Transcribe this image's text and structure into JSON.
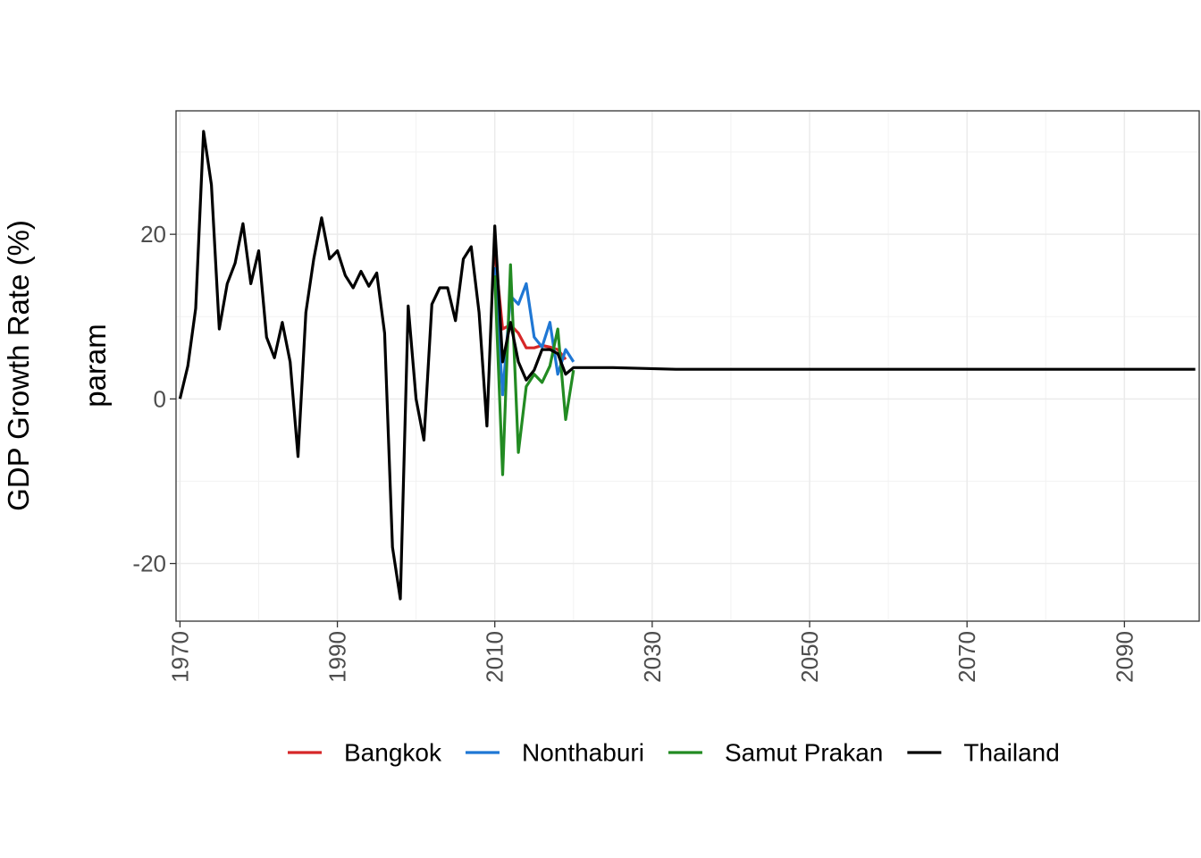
{
  "chart_data": {
    "type": "line",
    "ylabel_outer": "GDP Growth Rate (%)",
    "ylabel_inner": "param",
    "xlabel": "",
    "xlim": [
      1969.5,
      2099.5
    ],
    "ylim": [
      -27,
      35
    ],
    "x_ticks": [
      1970,
      1990,
      2010,
      2030,
      2050,
      2070,
      2090
    ],
    "x_tick_labels": [
      "1970",
      "1990",
      "2010",
      "2030",
      "2050",
      "2070",
      "2090"
    ],
    "y_ticks": [
      -20,
      0,
      20
    ],
    "y_tick_labels": [
      "-20",
      "0",
      "20"
    ],
    "x_minor_ticks": [
      1980,
      2000,
      2020,
      2040,
      2060,
      2080
    ],
    "y_minor_ticks": [
      -10,
      10,
      30
    ],
    "grid": true,
    "legend_position": "bottom",
    "series": [
      {
        "name": "Bangkok",
        "color": "#d62728",
        "x": [
          2010,
          2011,
          2012,
          2013,
          2014,
          2015,
          2016,
          2017,
          2018,
          2019
        ],
        "y": [
          18,
          8.5,
          9,
          8,
          6.2,
          6.2,
          6.5,
          6.3,
          6.0,
          4.8
        ]
      },
      {
        "name": "Nonthaburi",
        "color": "#1f77d4",
        "x": [
          2010,
          2011,
          2012,
          2013,
          2014,
          2015,
          2016,
          2017,
          2018,
          2019,
          2020
        ],
        "y": [
          16,
          0.5,
          12.5,
          11.5,
          14,
          7.5,
          6.3,
          9.3,
          3,
          6,
          4.5
        ]
      },
      {
        "name": "Samut Prakan",
        "color": "#228b22",
        "x": [
          2010,
          2011,
          2012,
          2013,
          2014,
          2015,
          2016,
          2017,
          2018,
          2019,
          2020
        ],
        "y": [
          15,
          -9.2,
          16.3,
          -6.5,
          1.5,
          3,
          2,
          4,
          8.5,
          -2.5,
          3.5
        ]
      },
      {
        "name": "Thailand",
        "color": "#000000",
        "x": [
          1970,
          1971,
          1972,
          1973,
          1974,
          1975,
          1976,
          1977,
          1978,
          1979,
          1980,
          1981,
          1982,
          1983,
          1984,
          1985,
          1986,
          1987,
          1988,
          1989,
          1990,
          1991,
          1992,
          1993,
          1994,
          1995,
          1996,
          1997,
          1998,
          1999,
          2000,
          2001,
          2002,
          2003,
          2004,
          2005,
          2006,
          2007,
          2008,
          2009,
          2010,
          2011,
          2012,
          2013,
          2014,
          2015,
          2016,
          2017,
          2018,
          2019,
          2020,
          2025,
          2033,
          2050,
          2070,
          2099
        ],
        "y": [
          0,
          4,
          11,
          32.5,
          26,
          8.5,
          14,
          16.5,
          21.3,
          14,
          18,
          7.5,
          5,
          9.3,
          4.5,
          -7,
          10.5,
          17,
          22,
          17,
          18,
          15,
          13.5,
          15.5,
          13.7,
          15.3,
          8,
          -18,
          -24.3,
          11.3,
          0,
          -5,
          11.5,
          13.5,
          13.5,
          9.5,
          17,
          18.5,
          10.5,
          -3.3,
          21,
          4.5,
          9.3,
          4.5,
          2.3,
          3.5,
          6,
          6,
          5.5,
          3,
          3.8,
          3.8,
          3.6,
          3.6,
          3.6,
          3.6
        ]
      }
    ]
  }
}
